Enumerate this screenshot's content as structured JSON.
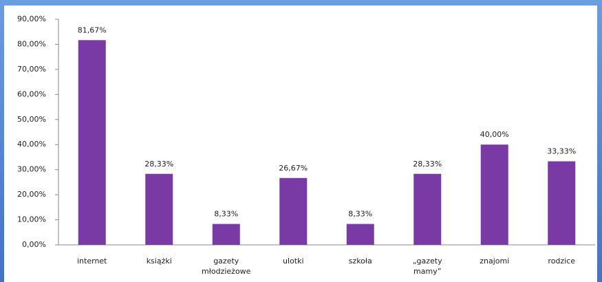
{
  "chart_data": {
    "type": "bar",
    "categories": [
      "internet",
      "książki",
      "gazety młodzieżowe",
      "ulotki",
      "szkoła",
      "„gazety mamy”",
      "znajomi",
      "rodzice"
    ],
    "values": [
      81.67,
      28.33,
      8.33,
      26.67,
      8.33,
      28.33,
      40.0,
      33.33
    ],
    "value_labels": [
      "81,67%",
      "28,33%",
      "8,33%",
      "26,67%",
      "8,33%",
      "28,33%",
      "40,00%",
      "33,33%"
    ],
    "color": "#7a3aa6",
    "ylim": [
      0,
      90
    ],
    "yticks": [
      {
        "value": 0,
        "label": "0,00%"
      },
      {
        "value": 10,
        "label": "10,00%"
      },
      {
        "value": 20,
        "label": "20,00%"
      },
      {
        "value": 30,
        "label": "30,00%"
      },
      {
        "value": 40,
        "label": "40,00%"
      },
      {
        "value": 50,
        "label": "50,00%"
      },
      {
        "value": 60,
        "label": "60,00%"
      },
      {
        "value": 70,
        "label": "70,00%"
      },
      {
        "value": 80,
        "label": "80,00%"
      },
      {
        "value": 90,
        "label": "90,00%"
      }
    ],
    "grid": false
  }
}
